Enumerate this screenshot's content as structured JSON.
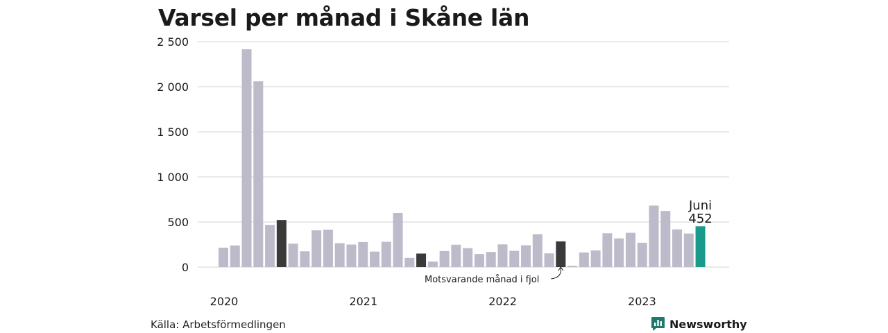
{
  "chart_data": {
    "type": "bar",
    "title": "Varsel per månad i Skåne län",
    "xlabel": "",
    "ylabel": "",
    "ylim": [
      0,
      2500
    ],
    "yticks": [
      0,
      500,
      1000,
      1500,
      2000,
      2500
    ],
    "ytick_labels": [
      "0",
      "500",
      "1 000",
      "1 500",
      "2 000",
      "2 500"
    ],
    "grid": true,
    "year_labels": [
      "2020",
      "2021",
      "2022",
      "2023"
    ],
    "values": [
      215,
      240,
      2415,
      2060,
      468,
      522,
      260,
      175,
      408,
      415,
      265,
      250,
      278,
      172,
      280,
      600,
      102,
      150,
      62,
      178,
      248,
      210,
      145,
      168,
      252,
      180,
      242,
      365,
      152,
      285,
      15,
      162,
      185,
      375,
      318,
      380,
      270,
      682,
      622,
      418,
      372,
      452
    ],
    "highlight_corresponding_indices": [
      5,
      17,
      29
    ],
    "highlight_latest_index": 41,
    "colors": {
      "bar": "#bdbbc9",
      "corresponding": "#3a3a3a",
      "latest": "#1a9a8a",
      "grid": "#dcdcdc",
      "brand": "#1f7a6e"
    },
    "annotations": {
      "corresponding_label": "Motsvarande månad i fjol",
      "latest_month": "Juni",
      "latest_value": "452"
    }
  },
  "footer": {
    "source": "Källa: Arbetsförmedlingen",
    "brand": "Newsworthy",
    "brand_icon": "newsworthy-logo-icon"
  }
}
